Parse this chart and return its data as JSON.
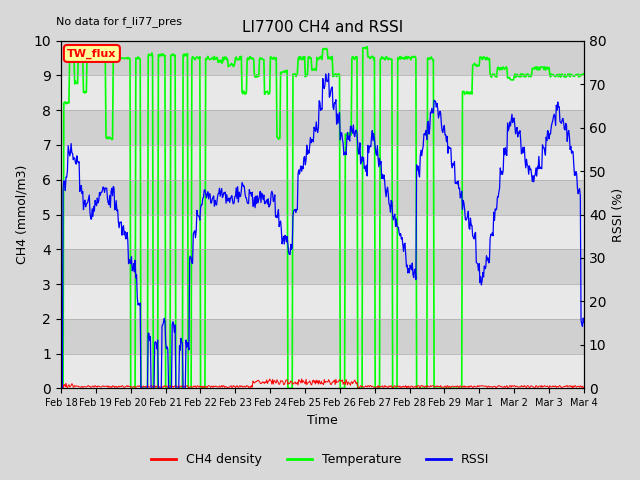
{
  "title": "LI7700 CH4 and RSSI",
  "subtitle": "No data for f_li77_pres",
  "xlabel": "Time",
  "ylabel_left": "CH4 (mmol/m3)",
  "ylabel_right": "RSSI (%)",
  "annotation": "TW_flux",
  "ylim_left": [
    0.0,
    10.0
  ],
  "ylim_right": [
    0,
    80
  ],
  "yticks_left": [
    0.0,
    1.0,
    2.0,
    3.0,
    4.0,
    5.0,
    6.0,
    7.0,
    8.0,
    9.0,
    10.0
  ],
  "yticks_right": [
    0,
    10,
    20,
    30,
    40,
    50,
    60,
    70,
    80
  ],
  "xtick_labels": [
    "Feb 18",
    "Feb 19",
    "Feb 20",
    "Feb 21",
    "Feb 22",
    "Feb 23",
    "Feb 24",
    "Feb 25",
    "Feb 26",
    "Feb 27",
    "Feb 28",
    "Feb 29",
    "Mar 1",
    "Mar 2",
    "Mar 3",
    "Mar 4"
  ],
  "ch4_color": "#ff0000",
  "temp_color": "#00ff00",
  "rssi_color": "#0000ff",
  "background_color": "#d8d8d8",
  "band_color_light": "#e8e8e8",
  "band_color_dark": "#d0d0d0",
  "legend_labels": [
    "CH4 density",
    "Temperature",
    "RSSI"
  ]
}
